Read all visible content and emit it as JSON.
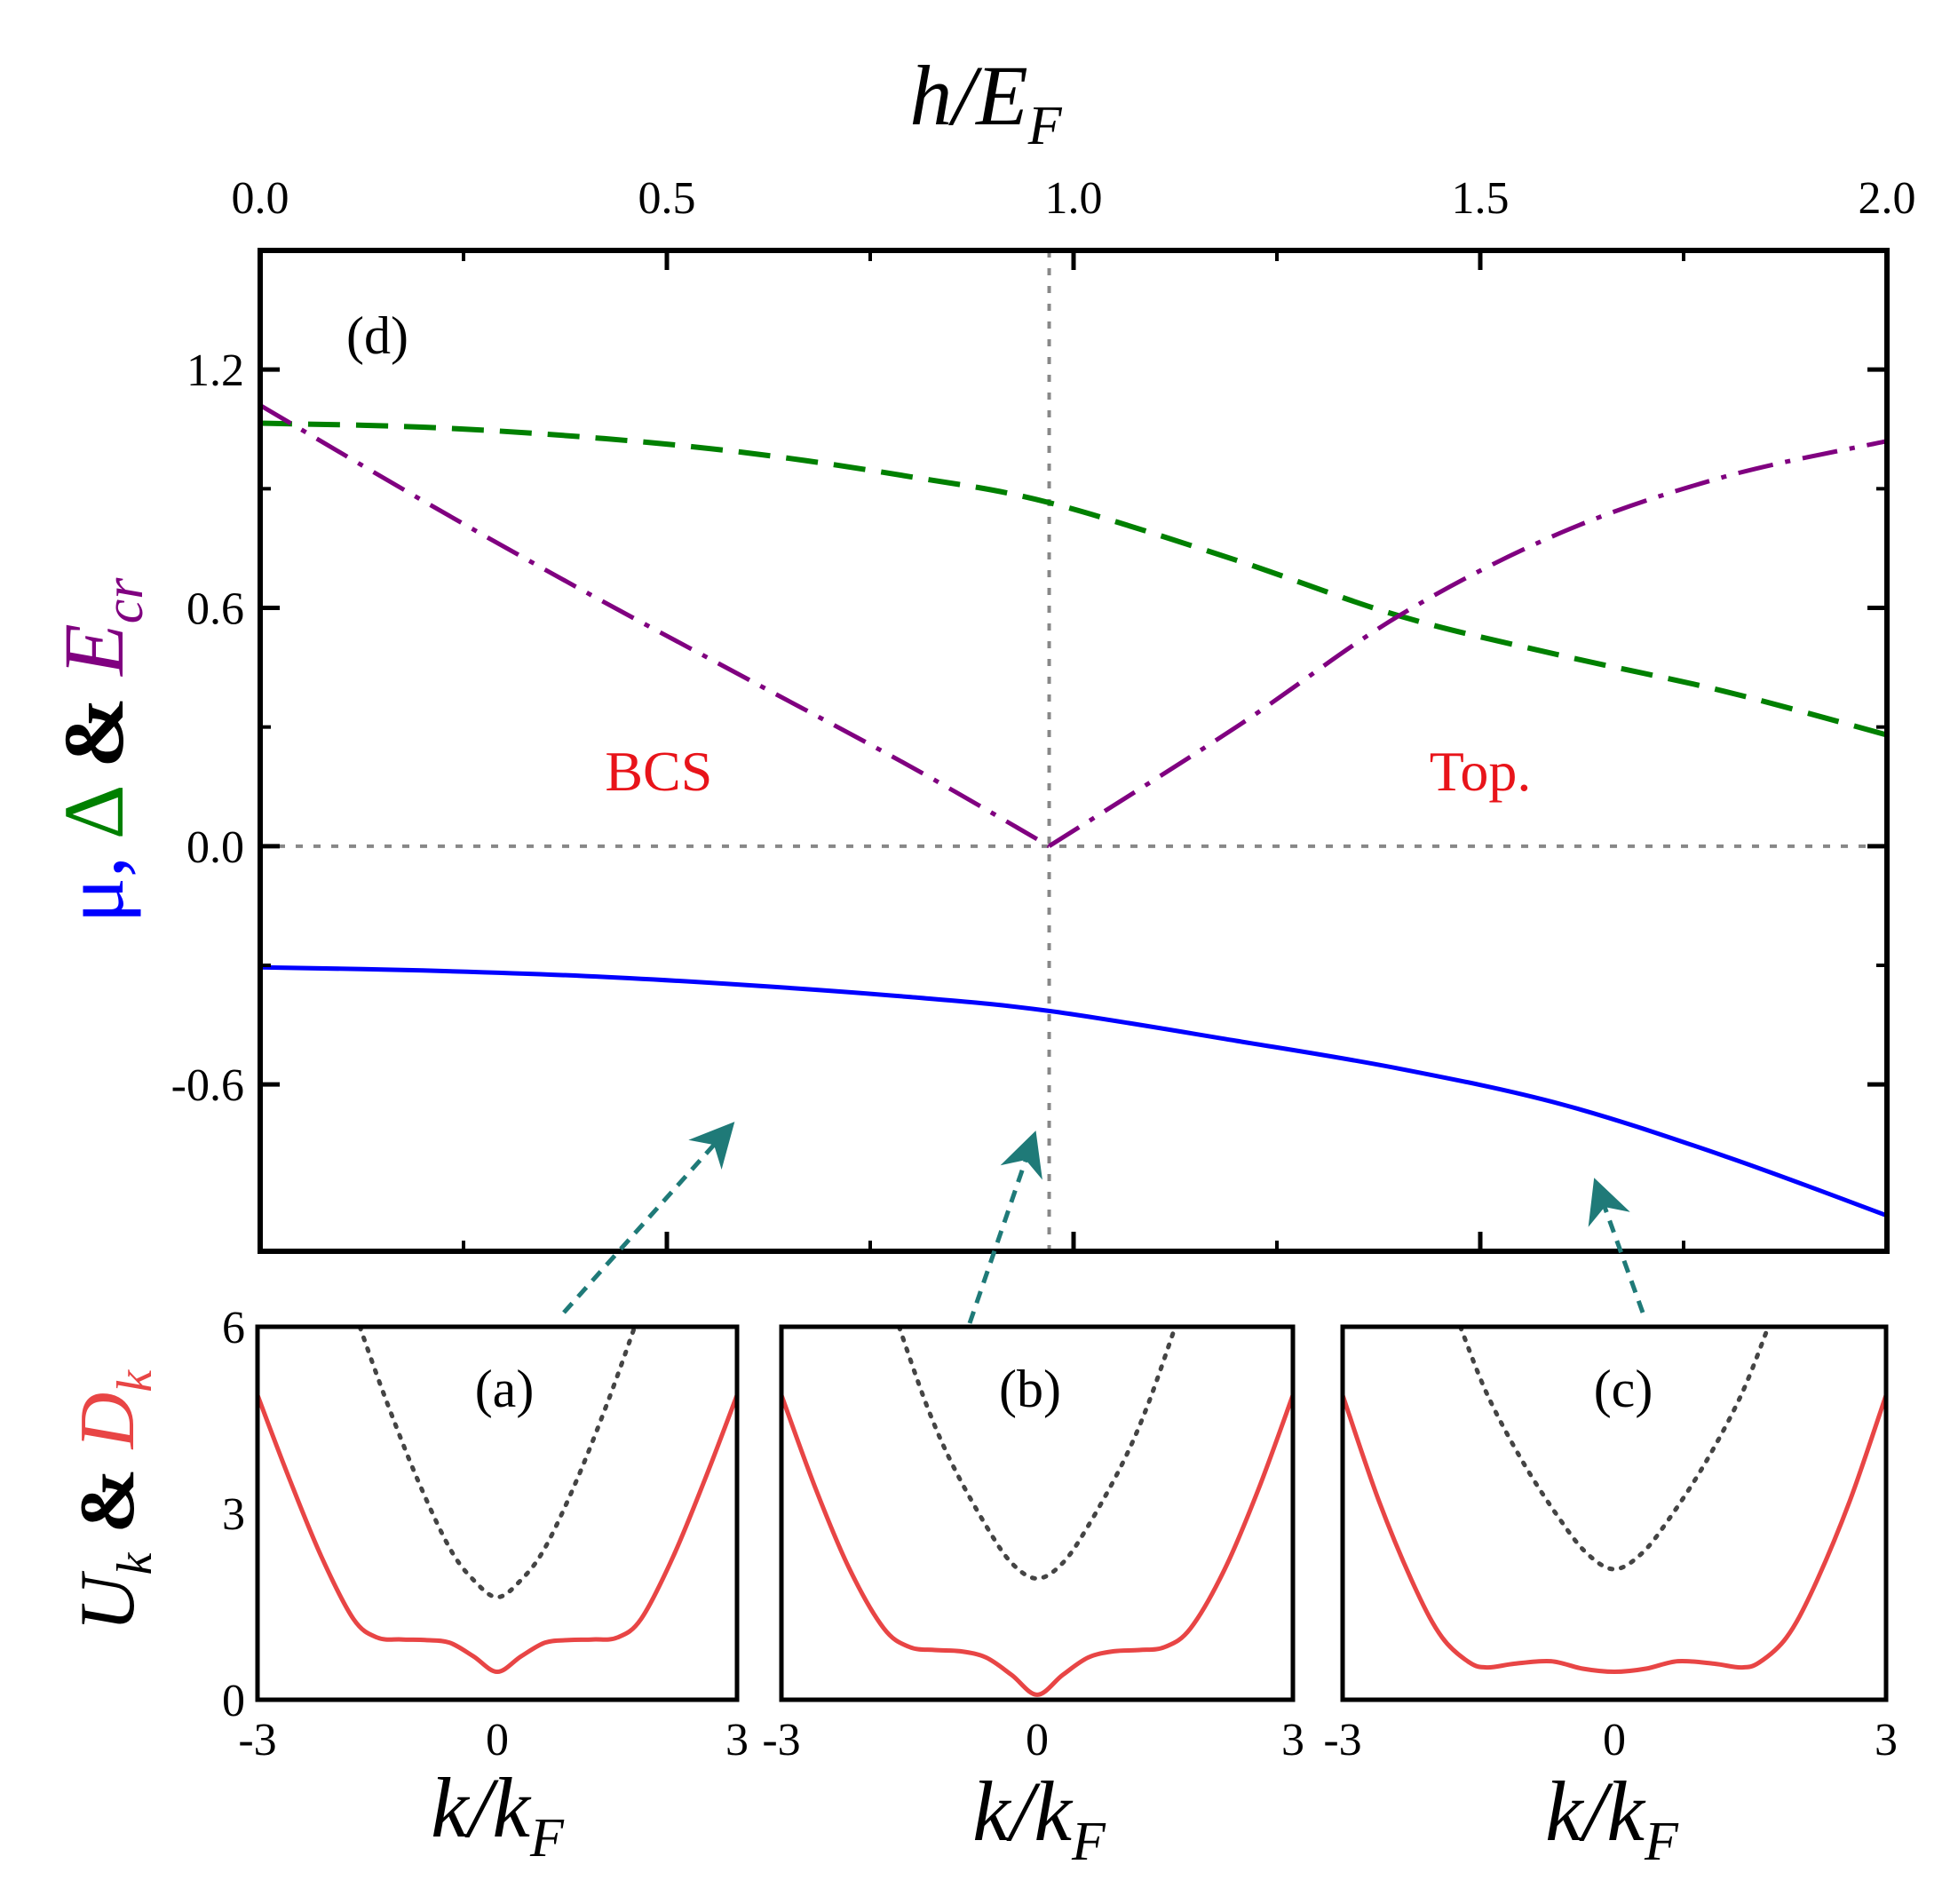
{
  "chart_data": [
    {
      "id": "d",
      "type": "line",
      "panel_label": "(d)",
      "xlabel_main": "h/E",
      "xlabel_sub": "F",
      "ylabel": {
        "mu": "μ,",
        "delta": "Δ",
        "amp": "&",
        "e_main": "E",
        "e_sub": "cr"
      },
      "xlim": [
        0,
        2
      ],
      "ylim": [
        -1.02,
        1.5
      ],
      "xticks": [
        0,
        0.5,
        1.0,
        1.5,
        2.0
      ],
      "xtick_labels": [
        "0.0",
        "0.5",
        "1.0",
        "1.5",
        "2.0"
      ],
      "yticks": [
        -0.6,
        0.0,
        0.6,
        1.2
      ],
      "ytick_labels": [
        "-0.6",
        "0.0",
        "0.6",
        "1.2"
      ],
      "vline_x": 0.97,
      "hline_y": 0.0,
      "regions": [
        {
          "label": "BCS",
          "x": 0.49,
          "y": 0.14
        },
        {
          "label": "Top.",
          "x": 1.5,
          "y": 0.14
        }
      ],
      "series": [
        {
          "name": "mu",
          "color": "#0000ff",
          "style": "solid",
          "x": [
            0,
            0.2,
            0.4,
            0.6,
            0.8,
            0.97,
            1.2,
            1.4,
            1.6,
            1.8,
            2.0
          ],
          "y": [
            -0.305,
            -0.313,
            -0.327,
            -0.35,
            -0.38,
            -0.415,
            -0.49,
            -0.56,
            -0.65,
            -0.78,
            -0.93
          ]
        },
        {
          "name": "Delta",
          "color": "#008000",
          "style": "dashed",
          "x": [
            0,
            0.2,
            0.4,
            0.6,
            0.8,
            0.97,
            1.2,
            1.4,
            1.6,
            1.8,
            2.0
          ],
          "y": [
            1.065,
            1.055,
            1.03,
            0.99,
            0.93,
            0.865,
            0.72,
            0.58,
            0.48,
            0.39,
            0.28
          ]
        },
        {
          "name": "E_cr",
          "color": "#800080",
          "style": "dashdot",
          "x": [
            0,
            0.2,
            0.4,
            0.6,
            0.8,
            0.97,
            1.2,
            1.4,
            1.6,
            1.8,
            2.0
          ],
          "y": [
            1.11,
            0.87,
            0.64,
            0.42,
            0.2,
            0.0,
            0.3,
            0.58,
            0.79,
            0.93,
            1.02
          ]
        }
      ]
    },
    {
      "id": "a",
      "type": "line",
      "panel_label": "(a)",
      "xlabel_main": "k/k",
      "xlabel_sub": "F",
      "xlim": [
        -3,
        3
      ],
      "ylim": [
        0,
        6
      ],
      "xticks": [
        -3,
        0,
        3
      ],
      "xtick_labels": [
        "-3",
        "0",
        "3"
      ],
      "yticks": [
        0,
        3,
        6
      ],
      "ytick_labels": [
        "0",
        "3",
        "6"
      ],
      "ylabel": {
        "u_main": "U",
        "u_sub": "k",
        "amp": "&",
        "d_main": "D",
        "d_sub": "k"
      },
      "series": [
        {
          "name": "U_k",
          "color": "#444444",
          "style": "dotted",
          "x": [
            -1.72,
            -1.4,
            -1.0,
            -0.6,
            -0.3,
            0,
            0.3,
            0.6,
            1.0,
            1.4,
            1.72
          ],
          "y": [
            6.0,
            4.85,
            3.55,
            2.45,
            1.93,
            1.65,
            1.93,
            2.45,
            3.55,
            4.85,
            6.0
          ]
        },
        {
          "name": "D_k",
          "color": "#e84545",
          "style": "solid",
          "x": [
            -3,
            -2.6,
            -2.2,
            -1.8,
            -1.5,
            -1.2,
            -0.9,
            -0.6,
            -0.3,
            0,
            0.3,
            0.6,
            0.9,
            1.2,
            1.5,
            1.8,
            2.2,
            2.6,
            3
          ],
          "y": [
            4.9,
            3.55,
            2.3,
            1.3,
            1.0,
            0.97,
            0.96,
            0.92,
            0.7,
            0.45,
            0.7,
            0.92,
            0.96,
            0.97,
            1.0,
            1.3,
            2.3,
            3.55,
            4.9
          ]
        }
      ]
    },
    {
      "id": "b",
      "type": "line",
      "panel_label": "(b)",
      "xlabel_main": "k/k",
      "xlabel_sub": "F",
      "xlim": [
        -3,
        3
      ],
      "ylim": [
        0,
        6
      ],
      "xticks": [
        -3,
        0,
        3
      ],
      "xtick_labels": [
        "-3",
        "0",
        "3"
      ],
      "series": [
        {
          "name": "U_k",
          "color": "#444444",
          "style": "dotted",
          "x": [
            -1.62,
            -1.3,
            -1.0,
            -0.6,
            -0.3,
            0,
            0.3,
            0.6,
            1.0,
            1.3,
            1.62
          ],
          "y": [
            6.0,
            4.75,
            3.8,
            2.8,
            2.2,
            1.95,
            2.2,
            2.8,
            3.8,
            4.75,
            6.0
          ]
        },
        {
          "name": "D_k",
          "color": "#e84545",
          "style": "solid",
          "x": [
            -3,
            -2.6,
            -2.2,
            -1.8,
            -1.5,
            -1.2,
            -0.9,
            -0.6,
            -0.3,
            0,
            0.3,
            0.6,
            0.9,
            1.2,
            1.5,
            1.8,
            2.2,
            2.6,
            3
          ],
          "y": [
            4.9,
            3.4,
            2.1,
            1.15,
            0.85,
            0.8,
            0.78,
            0.68,
            0.4,
            0.08,
            0.4,
            0.68,
            0.78,
            0.8,
            0.85,
            1.15,
            2.1,
            3.4,
            4.9
          ]
        }
      ]
    },
    {
      "id": "c",
      "type": "line",
      "panel_label": "(c)",
      "xlabel_main": "k/k",
      "xlabel_sub": "F",
      "xlim": [
        -3,
        3
      ],
      "ylim": [
        0,
        6
      ],
      "xticks": [
        -3,
        0,
        3
      ],
      "xtick_labels": [
        "-3",
        "0",
        "3"
      ],
      "series": [
        {
          "name": "U_k",
          "color": "#444444",
          "style": "dotted",
          "x": [
            -1.7,
            -1.4,
            -1.0,
            -0.6,
            -0.3,
            0,
            0.3,
            0.6,
            1.0,
            1.4,
            1.7
          ],
          "y": [
            6.0,
            4.9,
            3.8,
            2.9,
            2.35,
            2.1,
            2.35,
            2.9,
            3.8,
            4.9,
            6.0
          ]
        },
        {
          "name": "D_k",
          "color": "#e84545",
          "style": "solid",
          "x": [
            -3,
            -2.6,
            -2.2,
            -1.9,
            -1.6,
            -1.4,
            -1.1,
            -0.7,
            -0.35,
            0,
            0.35,
            0.7,
            1.1,
            1.4,
            1.6,
            1.9,
            2.2,
            2.6,
            3
          ],
          "y": [
            4.9,
            3.2,
            1.8,
            1.0,
            0.6,
            0.52,
            0.58,
            0.62,
            0.5,
            0.45,
            0.5,
            0.62,
            0.58,
            0.52,
            0.6,
            1.0,
            1.8,
            3.2,
            4.9
          ]
        }
      ]
    }
  ],
  "colors": {
    "mu": "#0000ff",
    "delta": "#008000",
    "ecr": "#800080",
    "region": "#e8141a",
    "arrow": "#1f7a78",
    "d_k": "#e84545"
  }
}
